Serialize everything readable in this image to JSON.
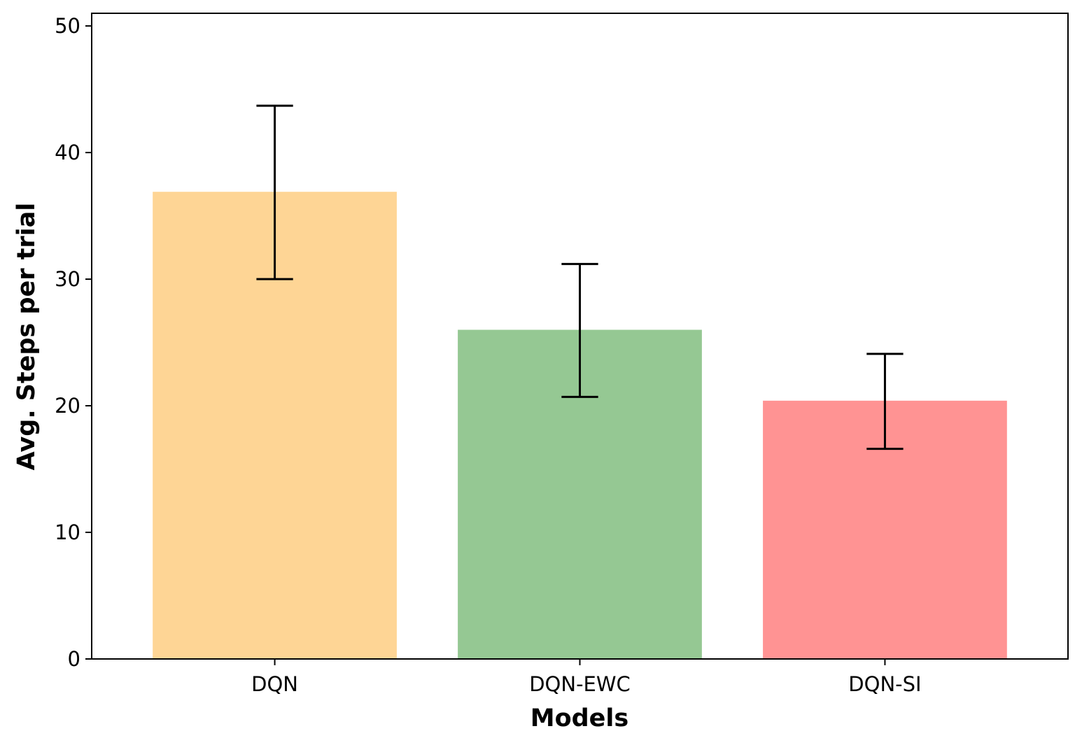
{
  "chart_data": {
    "type": "bar",
    "title": "",
    "xlabel": "Models",
    "ylabel": "Avg. Steps per trial",
    "categories": [
      "DQN",
      "DQN-EWC",
      "DQN-SI"
    ],
    "values": [
      36.9,
      26.0,
      20.4
    ],
    "error_low": [
      30.0,
      20.7,
      16.6
    ],
    "error_high": [
      43.7,
      31.2,
      24.1
    ],
    "colors": [
      "#fed595",
      "#95c893",
      "#ff9393"
    ],
    "error_color": "#000000",
    "ylim": [
      0,
      51
    ],
    "yticks": [
      0,
      10,
      20,
      30,
      40,
      50
    ],
    "grid": false,
    "legend": "none"
  }
}
